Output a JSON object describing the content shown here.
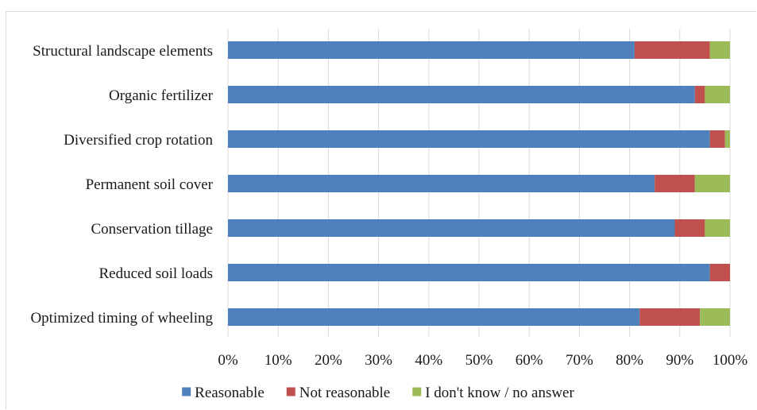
{
  "chart_data": {
    "type": "bar",
    "orientation": "horizontal",
    "stacked": true,
    "categories": [
      "Structural landscape elements",
      "Organic fertilizer",
      "Diversified crop rotation",
      "Permanent soil cover",
      "Conservation tillage",
      "Reduced soil loads",
      "Optimized timing of wheeling"
    ],
    "series": [
      {
        "name": "Reasonable",
        "color": "#4f81bd",
        "values": [
          81,
          93,
          96,
          85,
          89,
          96,
          82
        ]
      },
      {
        "name": "Not reasonable",
        "color": "#c0504d",
        "values": [
          15,
          2,
          3,
          8,
          6,
          4,
          12
        ]
      },
      {
        "name": "I don't know / no answer",
        "color": "#9bbb59",
        "values": [
          4,
          5,
          1,
          7,
          5,
          0,
          6
        ]
      }
    ],
    "x_ticks": [
      "0%",
      "10%",
      "20%",
      "30%",
      "40%",
      "50%",
      "60%",
      "70%",
      "80%",
      "90%",
      "100%"
    ],
    "xlim": [
      0,
      100
    ],
    "grid": "vertical",
    "legend_position": "bottom"
  }
}
